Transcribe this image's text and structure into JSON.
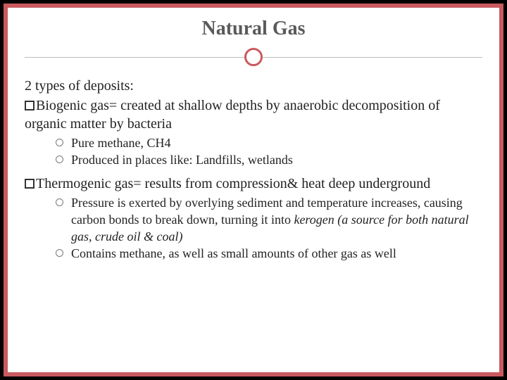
{
  "colors": {
    "border": "#c95a5f",
    "title": "#5a5a5a",
    "text": "#222222",
    "divider_line": "#bdbdbd",
    "circle_bullet": "#7a7a7a",
    "background": "#ffffff"
  },
  "typography": {
    "title_fontsize": 28,
    "body_fontsize": 20,
    "sub_fontsize": 18,
    "font_family": "Georgia, serif"
  },
  "title": "Natural Gas",
  "intro": "2 types of deposits:",
  "sections": [
    {
      "heading_strong": "Biogenic gas",
      "heading_rest": "= created at shallow depths by anaerobic decomposition of organic matter by bacteria",
      "bullets": [
        {
          "text": "Pure methane, CH4"
        },
        {
          "text": "Produced in places like: Landfills, wetlands"
        }
      ]
    },
    {
      "heading_strong": "Thermogenic gas",
      "heading_rest": "= results from compression& heat deep underground",
      "bullets": [
        {
          "text": "Pressure is exerted by overlying sediment and temperature increases, causing carbon bonds to break down, turning it into ",
          "italic_tail": "kerogen (a source for both natural gas, crude oil & coal)"
        },
        {
          "text": "Contains methane, as well as small amounts of other gas as well"
        }
      ]
    }
  ]
}
